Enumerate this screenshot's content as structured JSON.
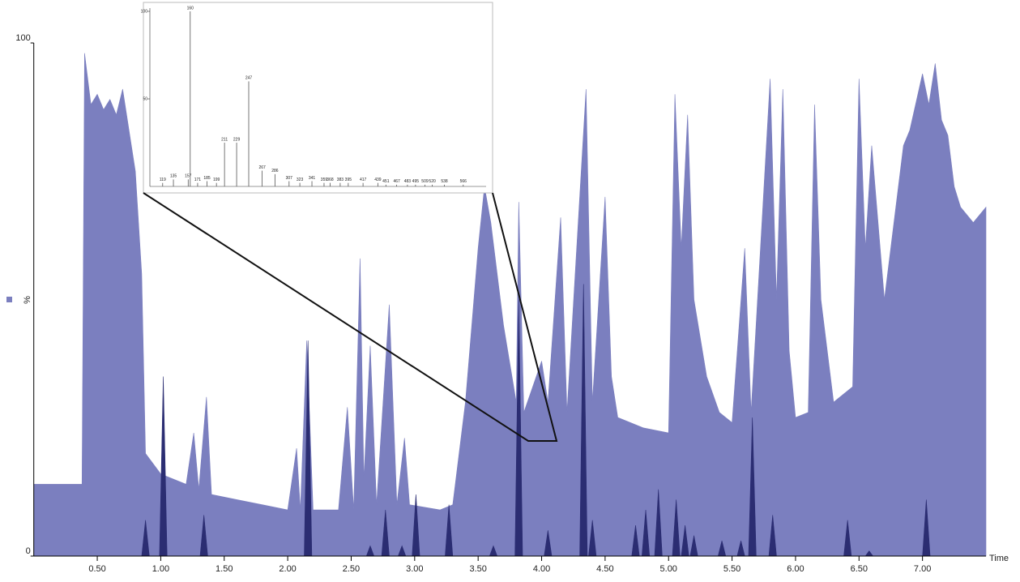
{
  "chart_data": [
    {
      "type": "area",
      "x_label": "Time",
      "y_label": "%",
      "xlim": [
        0,
        7.5
      ],
      "ylim": [
        0,
        100
      ],
      "xticks": [
        {
          "value": 0.5,
          "label": "0.50"
        },
        {
          "value": 1,
          "label": "1.00"
        },
        {
          "value": 1.5,
          "label": "1.50"
        },
        {
          "value": 2,
          "label": "2.00"
        },
        {
          "value": 2.5,
          "label": "2.50"
        },
        {
          "value": 3,
          "label": "3.00"
        },
        {
          "value": 3.5,
          "label": "3.50"
        },
        {
          "value": 4,
          "label": "4.00"
        },
        {
          "value": 4.5,
          "label": "4.50"
        },
        {
          "value": 5,
          "label": "5.00"
        },
        {
          "value": 5.5,
          "label": "5.50"
        },
        {
          "value": 6,
          "label": "6.00"
        },
        {
          "value": 6.5,
          "label": "6.50"
        },
        {
          "value": 7,
          "label": "7.00"
        }
      ],
      "yticks": [
        0,
        100
      ],
      "series": [
        {
          "color": "#7b7fbf",
          "x": [
            0,
            0.38,
            0.4,
            0.45,
            0.5,
            0.55,
            0.6,
            0.65,
            0.7,
            0.75,
            0.8,
            0.85,
            0.88,
            1.0,
            1.2,
            1.26,
            1.3,
            1.36,
            1.4,
            1.6,
            1.8,
            2.0,
            2.07,
            2.1,
            2.15,
            2.2,
            2.4,
            2.47,
            2.52,
            2.57,
            2.6,
            2.65,
            2.7,
            2.8,
            2.86,
            2.92,
            2.96,
            3.2,
            3.3,
            3.4,
            3.5,
            3.55,
            3.6,
            3.7,
            3.8,
            3.82,
            3.86,
            4.0,
            4.05,
            4.15,
            4.2,
            4.35,
            4.4,
            4.5,
            4.55,
            4.6,
            4.8,
            5.0,
            5.05,
            5.1,
            5.15,
            5.2,
            5.3,
            5.4,
            5.5,
            5.6,
            5.65,
            5.8,
            5.85,
            5.9,
            5.95,
            6.0,
            6.1,
            6.15,
            6.2,
            6.3,
            6.45,
            6.5,
            6.55,
            6.6,
            6.65,
            6.7,
            6.8,
            6.85,
            6.9,
            7.0,
            7.05,
            7.1,
            7.15,
            7.2,
            7.25,
            7.3,
            7.4,
            7.5
          ],
          "values": [
            14,
            14,
            98,
            88,
            90,
            87,
            89,
            86,
            91,
            83,
            75,
            55,
            20,
            16,
            14,
            24,
            13,
            31,
            12,
            11,
            10,
            9,
            21,
            9,
            42,
            9,
            9,
            29,
            9,
            58,
            15,
            41,
            10,
            49,
            10,
            23,
            10,
            9,
            10,
            30,
            60,
            72,
            65,
            45,
            30,
            69,
            28,
            38,
            30,
            66,
            28,
            91,
            30,
            70,
            35,
            27,
            25,
            24,
            90,
            60,
            86,
            50,
            35,
            28,
            26,
            60,
            28,
            93,
            50,
            91,
            40,
            27,
            28,
            88,
            50,
            30,
            33,
            93,
            60,
            80,
            65,
            50,
            70,
            80,
            83,
            94,
            88,
            96,
            85,
            82,
            72,
            68,
            65,
            68
          ]
        },
        {
          "color": "#2b2d72",
          "x": [
            0,
            0.85,
            0.88,
            0.91,
            0.99,
            1.02,
            1.05,
            1.31,
            1.34,
            1.37,
            2.13,
            2.16,
            2.19,
            2.62,
            2.65,
            2.68,
            2.74,
            2.77,
            2.8,
            2.87,
            2.9,
            2.93,
            2.98,
            3.01,
            3.04,
            3.24,
            3.27,
            3.3,
            3.59,
            3.62,
            3.65,
            3.79,
            3.82,
            3.85,
            4.02,
            4.05,
            4.08,
            4.3,
            4.33,
            4.36,
            4.37,
            4.4,
            4.43,
            4.71,
            4.74,
            4.77,
            4.79,
            4.82,
            4.85,
            4.89,
            4.92,
            4.95,
            5.03,
            5.06,
            5.09,
            5.1,
            5.13,
            5.16,
            5.17,
            5.2,
            5.23,
            5.39,
            5.42,
            5.45,
            5.54,
            5.57,
            5.6,
            5.63,
            5.66,
            5.69,
            5.79,
            5.82,
            5.85,
            6.38,
            6.41,
            6.44,
            6.55,
            6.58,
            6.61,
            7.0,
            7.03,
            7.06,
            7.5
          ],
          "values": [
            0,
            0,
            7,
            0,
            0,
            35,
            0,
            0,
            8,
            0,
            0,
            42,
            0,
            0,
            2,
            0,
            0,
            9,
            0,
            0,
            2,
            0,
            0,
            12,
            0,
            0,
            10,
            0,
            0,
            2,
            0,
            0,
            50,
            0,
            0,
            5,
            0,
            0,
            53,
            0,
            0,
            7,
            0,
            0,
            6,
            0,
            0,
            9,
            0,
            0,
            13,
            0,
            0,
            11,
            0,
            0,
            6,
            0,
            0,
            4,
            0,
            0,
            3,
            0,
            0,
            3,
            0,
            0,
            27,
            0,
            0,
            8,
            0,
            0,
            7,
            0,
            0,
            1,
            0,
            0,
            11,
            0,
            0
          ]
        }
      ]
    },
    {
      "type": "spectrum",
      "xlim": [
        100,
        600
      ],
      "ylim": [
        0,
        100
      ],
      "yticks": [
        50,
        100
      ],
      "color": "#555555",
      "x": [
        119,
        135,
        157,
        160,
        171,
        185,
        199,
        211,
        229,
        247,
        267,
        286,
        307,
        323,
        341,
        359,
        368,
        383,
        395,
        417,
        439,
        451,
        467,
        483,
        495,
        509,
        520,
        538,
        566
      ],
      "values": [
        2,
        4,
        4,
        100,
        2,
        3,
        2,
        25,
        25,
        60,
        9,
        7,
        3,
        2,
        3,
        2,
        2,
        2,
        2,
        2,
        2,
        1,
        1,
        1,
        1,
        1,
        1,
        1,
        1
      ]
    }
  ]
}
